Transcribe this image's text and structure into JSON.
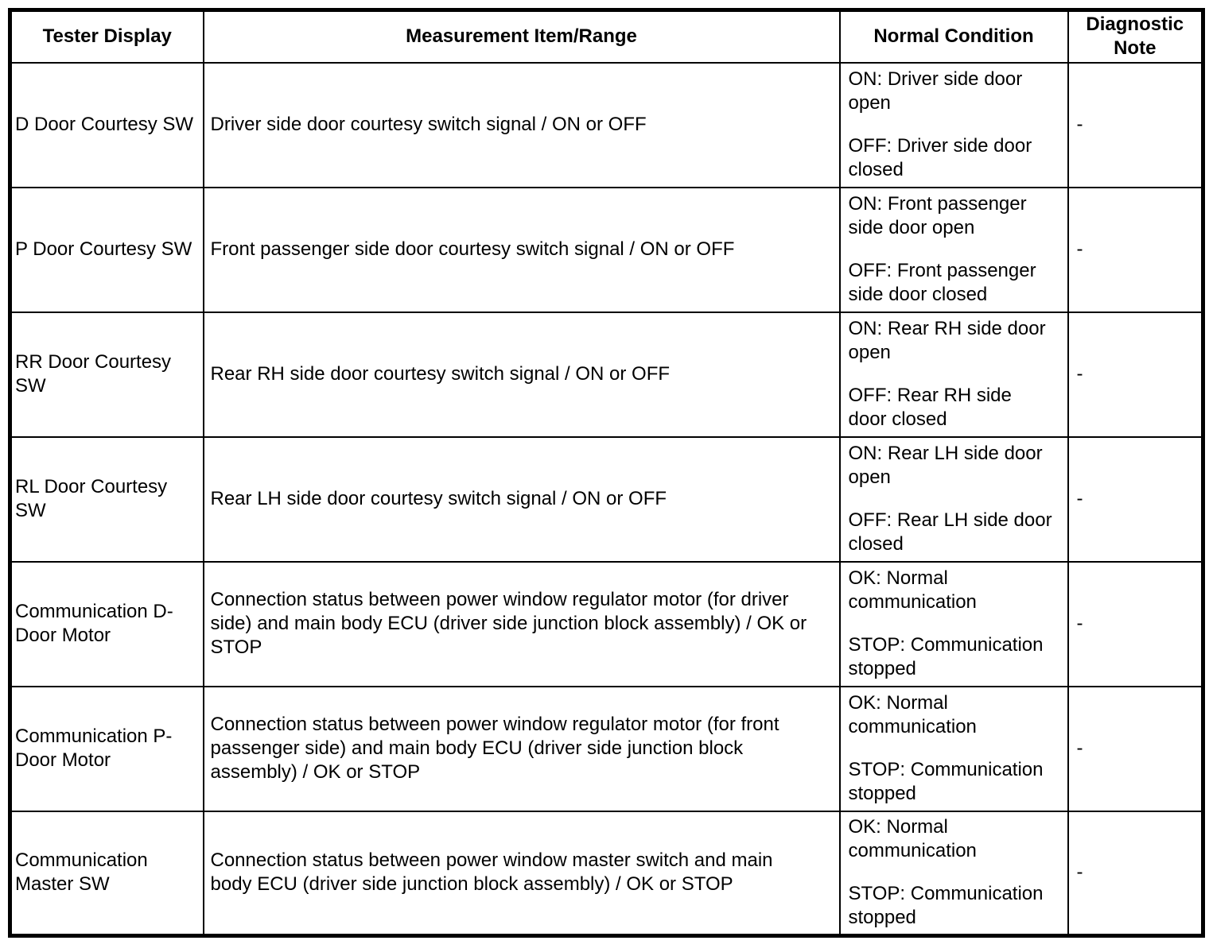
{
  "colors": {
    "border": "#000000",
    "text": "#000000",
    "background": "#ffffff"
  },
  "table": {
    "headers": {
      "tester": "Tester Display",
      "measurement": "Measurement Item/Range",
      "condition": "Normal Condition",
      "note": "Diagnostic Note"
    },
    "rows": [
      {
        "tester": "D Door Courtesy SW",
        "measurement": "Driver side door courtesy switch signal / ON or OFF",
        "conditions": [
          "ON: Driver side door open",
          "OFF: Driver side door closed"
        ],
        "note": "-"
      },
      {
        "tester": "P Door Courtesy SW",
        "measurement": "Front passenger side door courtesy switch signal / ON or OFF",
        "conditions": [
          "ON: Front passenger side door open",
          "OFF: Front passenger side door closed"
        ],
        "note": "-"
      },
      {
        "tester": "RR Door Courtesy SW",
        "measurement": "Rear RH side door courtesy switch signal / ON or OFF",
        "conditions": [
          "ON: Rear RH side door open",
          "OFF: Rear RH side door closed"
        ],
        "note": "-"
      },
      {
        "tester": "RL Door Courtesy SW",
        "measurement": "Rear LH side door courtesy switch signal / ON or OFF",
        "conditions": [
          "ON: Rear LH side door open",
          "OFF: Rear LH side door closed"
        ],
        "note": "-"
      },
      {
        "tester": "Communication D-Door Motor",
        "measurement": "Connection status between power window regulator motor (for driver side) and main body ECU (driver side junction block assembly) / OK or STOP",
        "conditions": [
          "OK: Normal communication",
          "STOP: Communication stopped"
        ],
        "note": "-"
      },
      {
        "tester": "Communication P-Door Motor",
        "measurement": "Connection status between power window regulator motor (for front passenger side) and main body ECU (driver side junction block assembly) / OK or STOP",
        "conditions": [
          "OK: Normal communication",
          "STOP: Communication stopped"
        ],
        "note": "-"
      },
      {
        "tester": "Communication Master SW",
        "measurement": "Connection status between power window master switch and main body ECU (driver side junction block assembly) / OK or STOP",
        "conditions": [
          "OK: Normal communication",
          "STOP: Communication stopped"
        ],
        "note": "-"
      }
    ]
  }
}
